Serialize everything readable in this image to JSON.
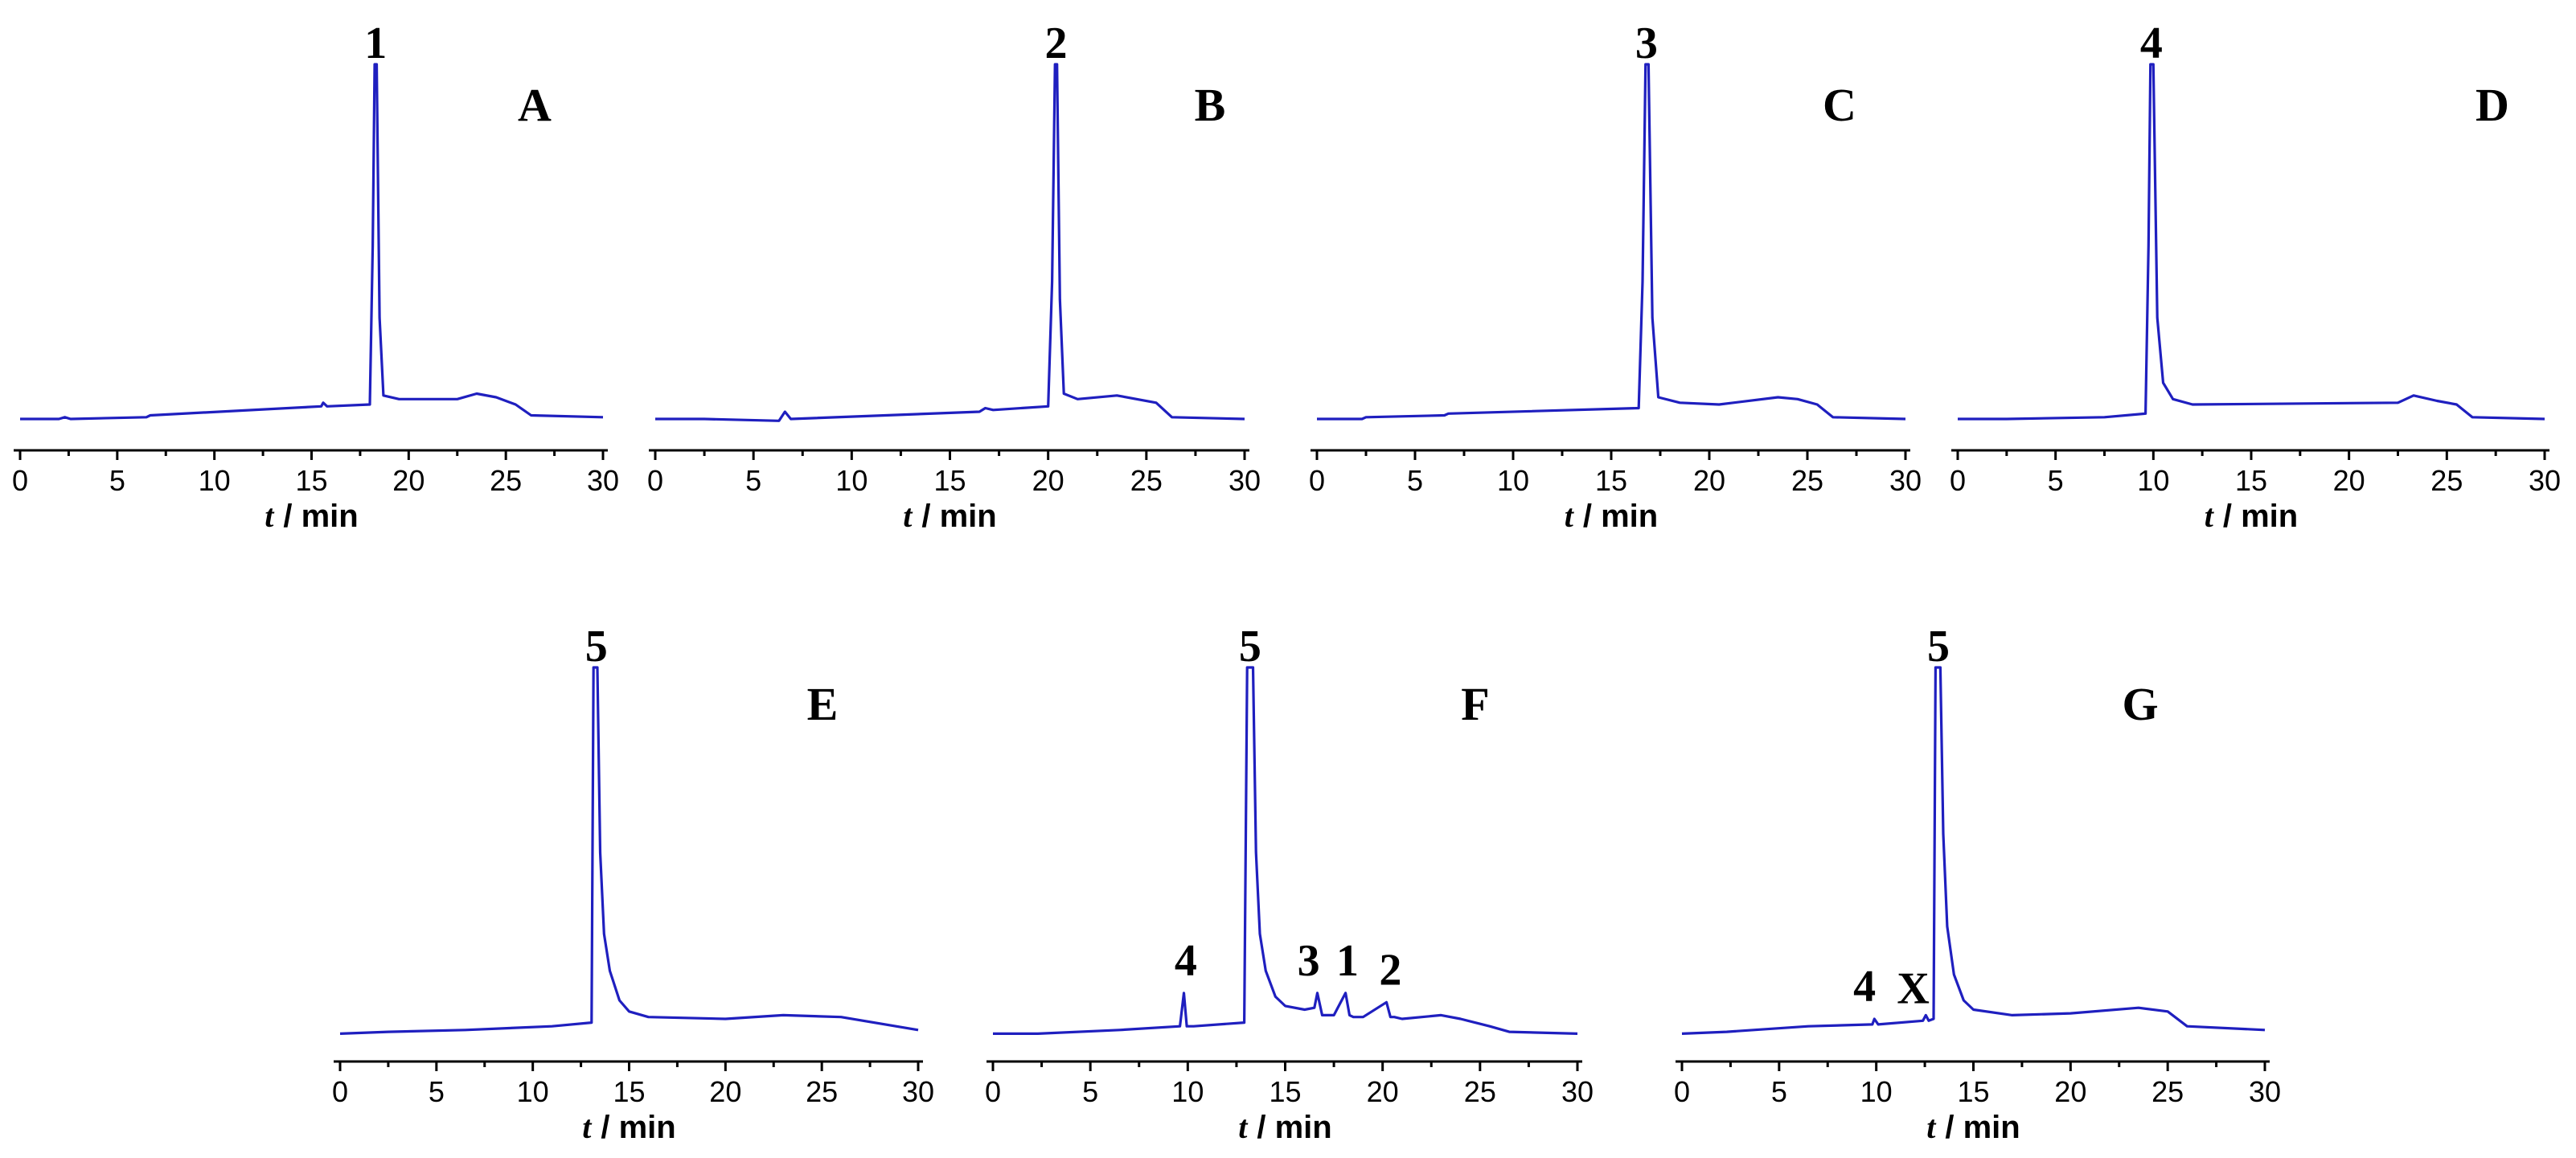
{
  "chart_data": [
    {
      "type": "line",
      "panel": "A",
      "xlabel_var": "t",
      "xlabel_unit": "/ min",
      "xlim": [
        0,
        30
      ],
      "xticks": [
        0,
        5,
        10,
        15,
        20,
        25,
        30
      ],
      "ylim": [
        0,
        1
      ],
      "series": [
        {
          "x": [
            0,
            2,
            2.3,
            2.6,
            6.5,
            6.7,
            15.5,
            15.6,
            15.8,
            18.0,
            18.15,
            18.25,
            18.35,
            18.5,
            18.7,
            19.5,
            22.5,
            23.5,
            24.5,
            25.5,
            26.3,
            30
          ],
          "y": [
            0.02,
            0.02,
            0.025,
            0.02,
            0.025,
            0.03,
            0.055,
            0.065,
            0.055,
            0.06,
            0.5,
            1.0,
            1.0,
            0.3,
            0.085,
            0.075,
            0.075,
            0.09,
            0.08,
            0.06,
            0.03,
            0.025
          ]
        }
      ],
      "peaks": [
        {
          "label": "1",
          "x": 18.3
        }
      ]
    },
    {
      "type": "line",
      "panel": "B",
      "xlabel_var": "t",
      "xlabel_unit": "/ min",
      "xlim": [
        0,
        30
      ],
      "xticks": [
        0,
        5,
        10,
        15,
        20,
        25,
        30
      ],
      "ylim": [
        0,
        1
      ],
      "series": [
        {
          "x": [
            0,
            2.5,
            6.3,
            6.6,
            6.9,
            16.5,
            16.8,
            17.2,
            20.0,
            20.2,
            20.35,
            20.45,
            20.6,
            20.8,
            21.5,
            23.5,
            25.5,
            26.3,
            30
          ],
          "y": [
            0.02,
            0.02,
            0.015,
            0.04,
            0.02,
            0.04,
            0.05,
            0.045,
            0.055,
            0.4,
            1.0,
            1.0,
            0.35,
            0.09,
            0.075,
            0.085,
            0.065,
            0.025,
            0.02
          ]
        }
      ],
      "peaks": [
        {
          "label": "2",
          "x": 20.4
        }
      ]
    },
    {
      "type": "line",
      "panel": "C",
      "xlabel_var": "t",
      "xlabel_unit": "/ min",
      "xlim": [
        0,
        30
      ],
      "xticks": [
        0,
        5,
        10,
        15,
        20,
        25,
        30
      ],
      "ylim": [
        0,
        1
      ],
      "series": [
        {
          "x": [
            0,
            2.3,
            2.5,
            6.5,
            6.7,
            16.4,
            16.6,
            16.75,
            16.9,
            17.1,
            17.4,
            18.5,
            20.5,
            23.5,
            24.5,
            25.5,
            26.3,
            30
          ],
          "y": [
            0.02,
            0.02,
            0.025,
            0.03,
            0.035,
            0.05,
            0.4,
            1.0,
            1.0,
            0.3,
            0.08,
            0.065,
            0.06,
            0.08,
            0.075,
            0.06,
            0.025,
            0.02
          ]
        }
      ],
      "peaks": [
        {
          "label": "3",
          "x": 16.8
        }
      ]
    },
    {
      "type": "line",
      "panel": "D",
      "xlabel_var": "t",
      "xlabel_unit": "/ min",
      "xlim": [
        0,
        30
      ],
      "xticks": [
        0,
        5,
        10,
        15,
        20,
        25,
        30
      ],
      "ylim": [
        0,
        1
      ],
      "series": [
        {
          "x": [
            0,
            2.5,
            7.5,
            9.6,
            9.75,
            9.85,
            10.0,
            10.2,
            10.5,
            11.0,
            12.0,
            22.5,
            23.3,
            24.5,
            25.5,
            26.3,
            30
          ],
          "y": [
            0.02,
            0.02,
            0.025,
            0.035,
            0.5,
            1.0,
            1.0,
            0.3,
            0.12,
            0.075,
            0.06,
            0.065,
            0.085,
            0.07,
            0.06,
            0.025,
            0.02
          ]
        }
      ],
      "peaks": [
        {
          "label": "4",
          "x": 9.9
        }
      ]
    },
    {
      "type": "line",
      "panel": "E",
      "xlabel_var": "t",
      "xlabel_unit": "/ min",
      "xlim": [
        0,
        30
      ],
      "xticks": [
        0,
        5,
        10,
        15,
        20,
        25,
        30
      ],
      "ylim": [
        0,
        1
      ],
      "series": [
        {
          "x": [
            0,
            2.5,
            6.5,
            11.0,
            13.05,
            13.15,
            13.35,
            13.5,
            13.7,
            14.0,
            14.5,
            15.0,
            16.0,
            20.0,
            23.0,
            26.0,
            30
          ],
          "y": [
            0.01,
            0.015,
            0.02,
            0.03,
            0.04,
            1.0,
            1.0,
            0.5,
            0.28,
            0.18,
            0.1,
            0.07,
            0.055,
            0.05,
            0.06,
            0.055,
            0.02
          ]
        }
      ],
      "peaks": [
        {
          "label": "5",
          "x": 13.3
        }
      ]
    },
    {
      "type": "line",
      "panel": "F",
      "xlabel_var": "t",
      "xlabel_unit": "/ min",
      "xlim": [
        0,
        30
      ],
      "xticks": [
        0,
        5,
        10,
        15,
        20,
        25,
        30
      ],
      "ylim": [
        0,
        1
      ],
      "series": [
        {
          "x": [
            0,
            2.3,
            6.5,
            9.6,
            9.8,
            9.95,
            10.3,
            12.9,
            13.05,
            13.35,
            13.5,
            13.7,
            14.0,
            14.5,
            15.0,
            16.0,
            16.5,
            16.65,
            16.9,
            17.5,
            18.1,
            18.3,
            18.5,
            19.0,
            20.2,
            20.4,
            20.6,
            21.0,
            23.0,
            24.0,
            25.5,
            26.5,
            30
          ],
          "y": [
            0.01,
            0.01,
            0.02,
            0.03,
            0.12,
            0.03,
            0.03,
            0.04,
            1.0,
            1.0,
            0.5,
            0.28,
            0.18,
            0.11,
            0.085,
            0.075,
            0.08,
            0.12,
            0.06,
            0.06,
            0.12,
            0.06,
            0.055,
            0.055,
            0.095,
            0.055,
            0.055,
            0.05,
            0.06,
            0.05,
            0.03,
            0.015,
            0.01
          ]
        }
      ],
      "peaks": [
        {
          "label": "4",
          "x": 9.9
        },
        {
          "label": "5",
          "x": 13.2
        },
        {
          "label": "3",
          "x": 16.2
        },
        {
          "label": "1",
          "x": 18.2
        },
        {
          "label": "2",
          "x": 20.4
        }
      ]
    },
    {
      "type": "line",
      "panel": "G",
      "xlabel_var": "t",
      "xlabel_unit": "/ min",
      "xlim": [
        0,
        30
      ],
      "xticks": [
        0,
        5,
        10,
        15,
        20,
        25,
        30
      ],
      "ylim": [
        0,
        1
      ],
      "series": [
        {
          "x": [
            0,
            2.3,
            6.5,
            9.8,
            9.9,
            10.1,
            12.4,
            12.55,
            12.7,
            12.95,
            13.05,
            13.3,
            13.45,
            13.65,
            14.0,
            14.5,
            15.0,
            17.0,
            20.0,
            23.5,
            25.0,
            26.0,
            30
          ],
          "y": [
            0.01,
            0.015,
            0.03,
            0.035,
            0.05,
            0.035,
            0.045,
            0.06,
            0.045,
            0.05,
            1.0,
            1.0,
            0.55,
            0.3,
            0.17,
            0.1,
            0.075,
            0.06,
            0.065,
            0.08,
            0.07,
            0.03,
            0.02
          ]
        }
      ],
      "peaks": [
        {
          "label": "4",
          "x": 9.4
        },
        {
          "label": "X",
          "x": 11.9
        },
        {
          "label": "5",
          "x": 13.2
        }
      ]
    }
  ]
}
